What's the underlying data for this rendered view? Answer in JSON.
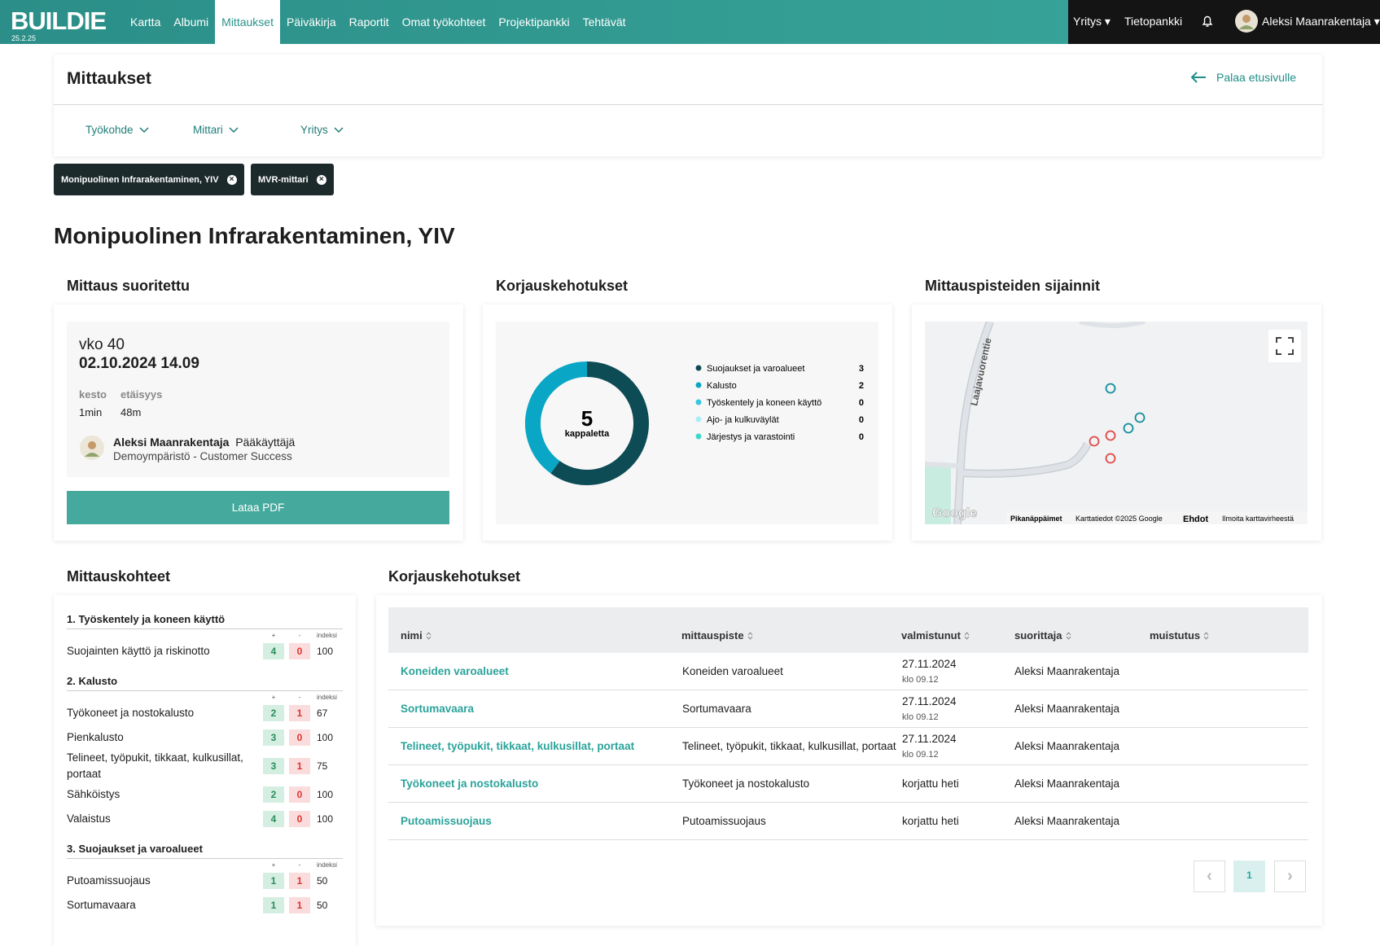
{
  "nav": {
    "logo": "BUILDIE",
    "version": "25.2.25",
    "links": [
      "Kartta",
      "Albumi",
      "Mittaukset",
      "Päiväkirja",
      "Raportit",
      "Omat työkohteet",
      "Projektipankki",
      "Tehtävät"
    ],
    "active": 2,
    "company": "Yritys",
    "knowledge": "Tietopankki",
    "user": "Aleksi Maanrakentaja"
  },
  "page": {
    "title": "Mittaukset",
    "back": "Palaa etusivulle",
    "filters": [
      "Työkohde",
      "Mittari",
      "Yritys"
    ],
    "chips": [
      "Monipuolinen Infrarakentaminen, YIV",
      "MVR-mittari"
    ],
    "heading": "Monipuolinen Infrarakentaminen, YIV"
  },
  "measurement": {
    "title": "Mittaus suoritettu",
    "week": "vko 40",
    "datetime": "02.10.2024 14.09",
    "duration_label": "kesto",
    "duration": "1min",
    "distance_label": "etäisyys",
    "distance": "48m",
    "user": "Aleksi Maanrakentaja",
    "role": "Pääkäyttäjä",
    "org": "Demoympäristö - Customer Success",
    "button": "Lataa PDF"
  },
  "chart_data": {
    "type": "donut",
    "title": "Korjauskehotukset",
    "total": 5,
    "total_label": "kappaletta",
    "categories": [
      "Suojaukset ja varoalueet",
      "Kalusto",
      "Työskentely ja koneen käyttö",
      "Ajo- ja kulkuväylät",
      "Järjestys ja varastointi"
    ],
    "values": [
      3,
      2,
      0,
      0,
      0
    ],
    "colors": [
      "#0d4b55",
      "#0aa6c6",
      "#35c7e2",
      "#a8eef6",
      "#3fd7cb"
    ]
  },
  "map": {
    "title": "Mittauspisteiden sijainnit",
    "road": "Laajavuorentie",
    "logo": "Google",
    "footer": [
      "Pikanäppäimet",
      "Karttatiedot ©2025 Google",
      "Ehdot",
      "Ilmoita karttavirheestä"
    ]
  },
  "targets": {
    "title": "Mittauskohteet",
    "col_plus": "+",
    "col_minus": "-",
    "col_index": "indeksi",
    "groups": [
      {
        "name": "1. Työskentely ja koneen käyttö",
        "items": [
          {
            "name": "Suojainten käyttö ja riskinotto",
            "plus": 4,
            "minus": 0,
            "index": 100
          }
        ]
      },
      {
        "name": "2. Kalusto",
        "items": [
          {
            "name": "Työkoneet ja nostokalusto",
            "plus": 2,
            "minus": 1,
            "index": 67
          },
          {
            "name": "Pienkalusto",
            "plus": 3,
            "minus": 0,
            "index": 100
          },
          {
            "name": "Telineet, työpukit, tikkaat, kulkusillat, portaat",
            "plus": 3,
            "minus": 1,
            "index": 75
          },
          {
            "name": "Sähköistys",
            "plus": 2,
            "minus": 0,
            "index": 100
          },
          {
            "name": "Valaistus",
            "plus": 4,
            "minus": 0,
            "index": 100
          }
        ]
      },
      {
        "name": "3. Suojaukset ja varoalueet",
        "items": [
          {
            "name": "Putoamissuojaus",
            "plus": 1,
            "minus": 1,
            "index": 50
          },
          {
            "name": "Sortumavaara",
            "plus": 1,
            "minus": 1,
            "index": 50
          }
        ]
      }
    ]
  },
  "table": {
    "title": "Korjauskehotukset",
    "columns": [
      "nimi",
      "mittauspiste",
      "valmistunut",
      "suorittaja",
      "muistutus"
    ],
    "rows": [
      {
        "name": "Koneiden varoalueet",
        "point": "Koneiden varoalueet",
        "done": "27.11.2024",
        "time": "klo 09.12",
        "by": "Aleksi Maanrakentaja"
      },
      {
        "name": "Sortumavaara",
        "point": "Sortumavaara",
        "done": "27.11.2024",
        "time": "klo 09.12",
        "by": "Aleksi Maanrakentaja"
      },
      {
        "name": "Telineet, työpukit, tikkaat, kulkusillat, portaat",
        "point": "Telineet, työpukit, tikkaat, kulkusillat, portaat",
        "done": "27.11.2024",
        "time": "klo 09.12",
        "by": "Aleksi Maanrakentaja"
      },
      {
        "name": "Työkoneet ja nostokalusto",
        "point": "Työkoneet ja nostokalusto",
        "done": "korjattu heti",
        "by": "Aleksi Maanrakentaja"
      },
      {
        "name": "Putoamissuojaus",
        "point": "Putoamissuojaus",
        "done": "korjattu heti",
        "by": "Aleksi Maanrakentaja"
      }
    ],
    "page": 1
  }
}
